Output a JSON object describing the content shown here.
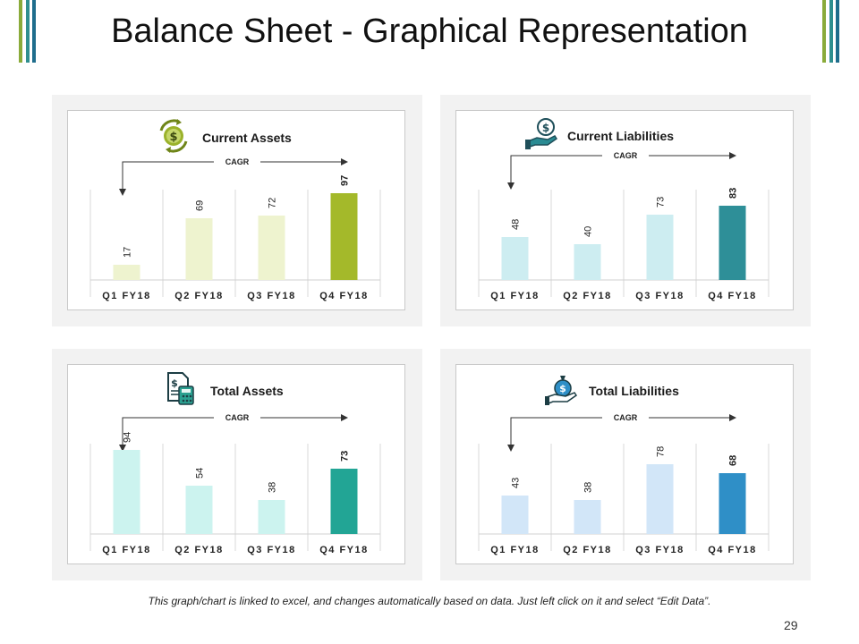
{
  "title": "Balance Sheet - Graphical Representation",
  "footnote": "This graph/chart is linked to excel, and changes automatically based on data. Just left click on it and select “Edit Data”.",
  "page_number": "29",
  "colors": {
    "deco_left": [
      "#8aab3a",
      "#2f8f8f",
      "#1f6d8c"
    ],
    "deco_right": [
      "#8aab3a",
      "#2f8f8f",
      "#1f6d8c"
    ]
  },
  "chart_data": [
    {
      "type": "bar",
      "title": "Current Assets",
      "icon": "money-cycle-icon",
      "annotation": "CAGR",
      "categories": [
        "Q1 FY18",
        "Q2 FY18",
        "Q3 FY18",
        "Q4 FY18"
      ],
      "values": [
        17,
        69,
        72,
        97
      ],
      "ylim": [
        0,
        100
      ],
      "colors": [
        "#eef3cf",
        "#eef3cf",
        "#eef3cf",
        "#a4b92a"
      ],
      "highlight_index": 3
    },
    {
      "type": "bar",
      "title": "Current Liabilities",
      "icon": "hand-coin-icon",
      "annotation": "CAGR",
      "categories": [
        "Q1 FY18",
        "Q2 FY18",
        "Q3 FY18",
        "Q4 FY18"
      ],
      "values": [
        48,
        40,
        73,
        83
      ],
      "ylim": [
        0,
        100
      ],
      "colors": [
        "#cdedf1",
        "#cdedf1",
        "#cdedf1",
        "#2e8f98"
      ],
      "highlight_index": 3
    },
    {
      "type": "bar",
      "title": "Total Assets",
      "icon": "calculator-document-icon",
      "annotation": "CAGR",
      "categories": [
        "Q1 FY18",
        "Q2 FY18",
        "Q3 FY18",
        "Q4 FY18"
      ],
      "values": [
        94,
        54,
        38,
        73
      ],
      "ylim": [
        0,
        100
      ],
      "colors": [
        "#ccf3ef",
        "#ccf3ef",
        "#ccf3ef",
        "#22a595"
      ],
      "highlight_index": 3
    },
    {
      "type": "bar",
      "title": "Total Liabilities",
      "icon": "money-bag-hand-icon",
      "annotation": "CAGR",
      "categories": [
        "Q1 FY18",
        "Q2 FY18",
        "Q3 FY18",
        "Q4 FY18"
      ],
      "values": [
        43,
        38,
        78,
        68
      ],
      "ylim": [
        0,
        100
      ],
      "colors": [
        "#d2e6f8",
        "#d2e6f8",
        "#d2e6f8",
        "#2f8fc7"
      ],
      "highlight_index": 3
    }
  ]
}
